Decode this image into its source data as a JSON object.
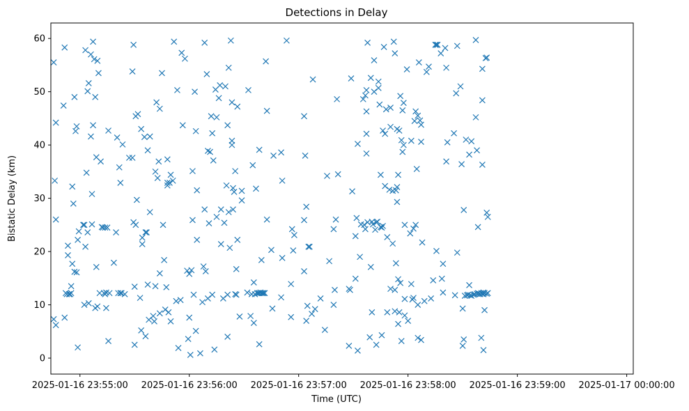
{
  "chart_data": {
    "type": "scatter",
    "title": "Detections in Delay",
    "xlabel": "Time (UTC)",
    "ylabel": "Bistatic Delay (km)",
    "marker": "x",
    "color": "#1f77b4",
    "grid": false,
    "x_unit": "minutes since 2025-01-16 23:55:00",
    "xlim": [
      -0.266,
      5.06
    ],
    "ylim": [
      -3.0,
      62.9
    ],
    "xticks": [
      {
        "value": 0,
        "label": "2025-01-16 23:55:00"
      },
      {
        "value": 1,
        "label": "2025-01-16 23:56:00"
      },
      {
        "value": 2,
        "label": "2025-01-16 23:57:00"
      },
      {
        "value": 3,
        "label": "2025-01-16 23:58:00"
      },
      {
        "value": 4,
        "label": "2025-01-16 23:59:00"
      },
      {
        "value": 5,
        "label": "2025-01-17 00:00:00"
      }
    ],
    "yticks": [
      {
        "value": 0,
        "label": "0"
      },
      {
        "value": 10,
        "label": "10"
      },
      {
        "value": 20,
        "label": "20"
      },
      {
        "value": 30,
        "label": "30"
      },
      {
        "value": 40,
        "label": "40"
      },
      {
        "value": 50,
        "label": "50"
      },
      {
        "value": 60,
        "label": "60"
      }
    ],
    "points": [
      [
        -0.24,
        55.5
      ],
      [
        -0.24,
        7.3
      ],
      [
        -0.23,
        33.3
      ],
      [
        -0.22,
        44.2
      ],
      [
        -0.22,
        26.0
      ],
      [
        -0.22,
        6.2
      ],
      [
        -0.14,
        7.6
      ],
      [
        -0.15,
        47.4
      ],
      [
        -0.14,
        58.3
      ],
      [
        -0.13,
        12.2
      ],
      [
        -0.12,
        12.0
      ],
      [
        -0.11,
        19.3
      ],
      [
        -0.11,
        21.1
      ],
      [
        -0.1,
        12.0
      ],
      [
        -0.09,
        12.0
      ],
      [
        -0.08,
        12.2
      ],
      [
        -0.08,
        13.5
      ],
      [
        -0.07,
        17.7
      ],
      [
        -0.07,
        32.2
      ],
      [
        -0.06,
        29.0
      ],
      [
        -0.05,
        16.2
      ],
      [
        -0.05,
        49.0
      ],
      [
        -0.04,
        42.6
      ],
      [
        -0.03,
        16.1
      ],
      [
        -0.03,
        43.5
      ],
      [
        -0.02,
        2.0
      ],
      [
        -0.02,
        22.2
      ],
      [
        -0.01,
        23.8
      ],
      [
        0.03,
        25.0
      ],
      [
        0.04,
        25.0
      ],
      [
        0.04,
        10.0
      ],
      [
        0.05,
        20.9
      ],
      [
        0.05,
        57.8
      ],
      [
        0.06,
        34.8
      ],
      [
        0.07,
        50.1
      ],
      [
        0.07,
        23.6
      ],
      [
        0.08,
        51.6
      ],
      [
        0.08,
        10.3
      ],
      [
        0.1,
        41.6
      ],
      [
        0.1,
        57.0
      ],
      [
        0.11,
        30.8
      ],
      [
        0.11,
        25.1
      ],
      [
        0.12,
        59.4
      ],
      [
        0.12,
        43.7
      ],
      [
        0.13,
        56.1
      ],
      [
        0.14,
        49.0
      ],
      [
        0.14,
        9.4
      ],
      [
        0.15,
        17.1
      ],
      [
        0.15,
        37.7
      ],
      [
        0.16,
        55.8
      ],
      [
        0.16,
        9.7
      ],
      [
        0.17,
        53.5
      ],
      [
        0.18,
        12.2
      ],
      [
        0.19,
        36.9
      ],
      [
        0.2,
        24.6
      ],
      [
        0.21,
        24.5
      ],
      [
        0.22,
        12.2
      ],
      [
        0.23,
        24.5
      ],
      [
        0.23,
        12.0
      ],
      [
        0.24,
        12.3
      ],
      [
        0.24,
        9.4
      ],
      [
        0.25,
        24.5
      ],
      [
        0.26,
        3.2
      ],
      [
        0.26,
        42.7
      ],
      [
        0.27,
        12.2
      ],
      [
        0.31,
        17.9
      ],
      [
        0.33,
        23.6
      ],
      [
        0.34,
        41.4
      ],
      [
        0.35,
        12.2
      ],
      [
        0.36,
        35.8
      ],
      [
        0.37,
        12.2
      ],
      [
        0.37,
        32.9
      ],
      [
        0.38,
        12.2
      ],
      [
        0.39,
        40.1
      ],
      [
        0.41,
        12.0
      ],
      [
        0.45,
        37.6
      ],
      [
        0.48,
        37.6
      ],
      [
        0.48,
        53.8
      ],
      [
        0.49,
        58.8
      ],
      [
        0.49,
        25.5
      ],
      [
        0.5,
        2.5
      ],
      [
        0.5,
        13.4
      ],
      [
        0.51,
        25.0
      ],
      [
        0.51,
        45.4
      ],
      [
        0.52,
        29.7
      ],
      [
        0.53,
        45.8
      ],
      [
        0.55,
        11.3
      ],
      [
        0.56,
        43.0
      ],
      [
        0.56,
        5.2
      ],
      [
        0.57,
        22.6
      ],
      [
        0.57,
        21.4
      ],
      [
        0.59,
        41.5
      ],
      [
        0.6,
        23.6
      ],
      [
        0.6,
        4.1
      ],
      [
        0.61,
        23.6
      ],
      [
        0.62,
        39.0
      ],
      [
        0.62,
        13.8
      ],
      [
        0.63,
        7.2
      ],
      [
        0.64,
        41.6
      ],
      [
        0.64,
        27.4
      ],
      [
        0.67,
        7.9
      ],
      [
        0.68,
        6.9
      ],
      [
        0.69,
        13.5
      ],
      [
        0.69,
        35.0
      ],
      [
        0.7,
        48.0
      ],
      [
        0.71,
        33.8
      ],
      [
        0.72,
        36.9
      ],
      [
        0.73,
        8.4
      ],
      [
        0.73,
        46.8
      ],
      [
        0.73,
        15.9
      ],
      [
        0.75,
        53.5
      ],
      [
        0.76,
        25.0
      ],
      [
        0.77,
        18.4
      ],
      [
        0.78,
        9.1
      ],
      [
        0.79,
        13.3
      ],
      [
        0.8,
        37.3
      ],
      [
        0.8,
        32.9
      ],
      [
        0.8,
        32.4
      ],
      [
        0.81,
        8.6
      ],
      [
        0.82,
        32.9
      ],
      [
        0.83,
        34.4
      ],
      [
        0.83,
        6.9
      ],
      [
        0.85,
        33.3
      ],
      [
        0.86,
        59.4
      ],
      [
        0.88,
        10.7
      ],
      [
        0.89,
        50.3
      ],
      [
        0.9,
        1.9
      ],
      [
        0.92,
        10.9
      ],
      [
        0.93,
        57.3
      ],
      [
        0.94,
        43.7
      ],
      [
        0.96,
        56.2
      ],
      [
        0.98,
        16.4
      ],
      [
        0.99,
        3.6
      ],
      [
        1.0,
        7.6
      ],
      [
        1.0,
        15.8
      ],
      [
        1.01,
        0.6
      ],
      [
        1.02,
        16.5
      ],
      [
        1.03,
        25.9
      ],
      [
        1.03,
        35.1
      ],
      [
        1.04,
        11.9
      ],
      [
        1.05,
        50.0
      ],
      [
        1.06,
        5.1
      ],
      [
        1.06,
        42.6
      ],
      [
        1.07,
        31.5
      ],
      [
        1.07,
        22.2
      ],
      [
        1.1,
        0.9
      ],
      [
        1.12,
        10.5
      ],
      [
        1.13,
        17.2
      ],
      [
        1.14,
        59.2
      ],
      [
        1.14,
        27.9
      ],
      [
        1.15,
        16.3
      ],
      [
        1.16,
        53.3
      ],
      [
        1.17,
        11.2
      ],
      [
        1.17,
        38.9
      ],
      [
        1.18,
        25.3
      ],
      [
        1.19,
        38.7
      ],
      [
        1.2,
        45.4
      ],
      [
        1.21,
        11.9
      ],
      [
        1.21,
        42.2
      ],
      [
        1.22,
        37.1
      ],
      [
        1.23,
        1.6
      ],
      [
        1.24,
        50.4
      ],
      [
        1.25,
        45.2
      ],
      [
        1.25,
        26.5
      ],
      [
        1.27,
        48.8
      ],
      [
        1.28,
        51.2
      ],
      [
        1.29,
        21.4
      ],
      [
        1.29,
        27.9
      ],
      [
        1.31,
        11.2
      ],
      [
        1.32,
        25.4
      ],
      [
        1.33,
        51.0
      ],
      [
        1.34,
        32.4
      ],
      [
        1.35,
        4.0
      ],
      [
        1.35,
        43.7
      ],
      [
        1.35,
        11.9
      ],
      [
        1.36,
        54.5
      ],
      [
        1.36,
        27.4
      ],
      [
        1.37,
        20.7
      ],
      [
        1.38,
        59.6
      ],
      [
        1.39,
        40.8
      ],
      [
        1.39,
        40.0
      ],
      [
        1.39,
        48.0
      ],
      [
        1.4,
        27.9
      ],
      [
        1.4,
        31.9
      ],
      [
        1.41,
        31.2
      ],
      [
        1.42,
        12.0
      ],
      [
        1.42,
        35.1
      ],
      [
        1.43,
        11.9
      ],
      [
        1.43,
        16.7
      ],
      [
        1.44,
        22.2
      ],
      [
        1.44,
        47.2
      ],
      [
        1.46,
        7.8
      ],
      [
        1.48,
        31.4
      ],
      [
        1.48,
        29.6
      ],
      [
        1.53,
        12.3
      ],
      [
        1.54,
        50.3
      ],
      [
        1.56,
        7.9
      ],
      [
        1.57,
        12.0
      ],
      [
        1.58,
        36.2
      ],
      [
        1.59,
        6.6
      ],
      [
        1.59,
        14.2
      ],
      [
        1.6,
        12.0
      ],
      [
        1.61,
        31.8
      ],
      [
        1.62,
        12.2
      ],
      [
        1.63,
        12.2
      ],
      [
        1.64,
        2.6
      ],
      [
        1.64,
        39.1
      ],
      [
        1.64,
        12.2
      ],
      [
        1.65,
        12.3
      ],
      [
        1.66,
        18.4
      ],
      [
        1.66,
        12.2
      ],
      [
        1.67,
        12.2
      ],
      [
        1.68,
        12.2
      ],
      [
        1.69,
        12.2
      ],
      [
        1.7,
        55.7
      ],
      [
        1.71,
        46.4
      ],
      [
        1.71,
        26.0
      ],
      [
        1.75,
        20.3
      ],
      [
        1.76,
        9.3
      ],
      [
        1.77,
        38.0
      ],
      [
        1.84,
        11.4
      ],
      [
        1.84,
        38.6
      ],
      [
        1.85,
        18.8
      ],
      [
        1.85,
        33.3
      ],
      [
        1.89,
        59.6
      ],
      [
        1.93,
        13.9
      ],
      [
        1.93,
        7.7
      ],
      [
        1.94,
        24.2
      ],
      [
        1.95,
        20.2
      ],
      [
        1.96,
        23.1
      ],
      [
        2.05,
        16.3
      ],
      [
        2.05,
        25.9
      ],
      [
        2.05,
        45.4
      ],
      [
        2.06,
        38.0
      ],
      [
        2.07,
        28.4
      ],
      [
        2.07,
        7.0
      ],
      [
        2.08,
        9.8
      ],
      [
        2.09,
        20.9
      ],
      [
        2.1,
        20.9
      ],
      [
        2.12,
        8.3
      ],
      [
        2.13,
        52.3
      ],
      [
        2.15,
        9.2
      ],
      [
        2.2,
        11.2
      ],
      [
        2.24,
        5.3
      ],
      [
        2.26,
        34.2
      ],
      [
        2.28,
        18.2
      ],
      [
        2.32,
        24.2
      ],
      [
        2.32,
        10.0
      ],
      [
        2.33,
        12.8
      ],
      [
        2.34,
        26.0
      ],
      [
        2.35,
        48.6
      ],
      [
        2.36,
        34.5
      ],
      [
        2.46,
        13.0
      ],
      [
        2.46,
        2.3
      ],
      [
        2.47,
        12.8
      ],
      [
        2.48,
        52.5
      ],
      [
        2.49,
        31.3
      ],
      [
        2.52,
        14.9
      ],
      [
        2.52,
        22.9
      ],
      [
        2.53,
        26.3
      ],
      [
        2.54,
        40.2
      ],
      [
        2.54,
        1.4
      ],
      [
        2.56,
        19.0
      ],
      [
        2.57,
        25.1
      ],
      [
        2.59,
        48.6
      ],
      [
        2.6,
        25.0
      ],
      [
        2.61,
        49.3
      ],
      [
        2.61,
        24.2
      ],
      [
        2.62,
        50.3
      ],
      [
        2.62,
        46.3
      ],
      [
        2.62,
        42.1
      ],
      [
        2.62,
        38.4
      ],
      [
        2.63,
        59.2
      ],
      [
        2.63,
        25.5
      ],
      [
        2.65,
        3.9
      ],
      [
        2.66,
        52.6
      ],
      [
        2.66,
        17.1
      ],
      [
        2.67,
        8.6
      ],
      [
        2.67,
        25.6
      ],
      [
        2.68,
        25.1
      ],
      [
        2.69,
        50.0
      ],
      [
        2.69,
        55.9
      ],
      [
        2.7,
        24.1
      ],
      [
        2.71,
        2.5
      ],
      [
        2.71,
        25.5
      ],
      [
        2.72,
        25.6
      ],
      [
        2.73,
        51.9
      ],
      [
        2.73,
        50.7
      ],
      [
        2.74,
        47.6
      ],
      [
        2.75,
        24.6
      ],
      [
        2.75,
        34.4
      ],
      [
        2.76,
        24.5
      ],
      [
        2.76,
        4.3
      ],
      [
        2.77,
        42.7
      ],
      [
        2.77,
        24.8
      ],
      [
        2.78,
        58.4
      ],
      [
        2.79,
        42.1
      ],
      [
        2.79,
        32.3
      ],
      [
        2.8,
        46.7
      ],
      [
        2.81,
        8.6
      ],
      [
        2.81,
        22.7
      ],
      [
        2.83,
        31.6
      ],
      [
        2.84,
        47.0
      ],
      [
        2.84,
        43.4
      ],
      [
        2.84,
        13.0
      ],
      [
        2.86,
        31.4
      ],
      [
        2.86,
        21.5
      ],
      [
        2.87,
        59.4
      ],
      [
        2.88,
        57.2
      ],
      [
        2.88,
        12.8
      ],
      [
        2.88,
        8.8
      ],
      [
        2.89,
        31.5
      ],
      [
        2.89,
        17.8
      ],
      [
        2.9,
        43.0
      ],
      [
        2.9,
        32.1
      ],
      [
        2.9,
        29.3
      ],
      [
        2.91,
        34.4
      ],
      [
        2.91,
        14.8
      ],
      [
        2.91,
        6.4
      ],
      [
        2.92,
        42.7
      ],
      [
        2.92,
        8.6
      ],
      [
        2.93,
        49.2
      ],
      [
        2.93,
        14.1
      ],
      [
        2.94,
        40.9
      ],
      [
        2.94,
        3.2
      ],
      [
        2.95,
        46.5
      ],
      [
        2.95,
        38.7
      ],
      [
        2.96,
        47.9
      ],
      [
        2.96,
        40.0
      ],
      [
        2.97,
        8.0
      ],
      [
        2.97,
        11.1
      ],
      [
        2.97,
        25.0
      ],
      [
        2.99,
        54.2
      ],
      [
        3.0,
        7.0
      ],
      [
        3.02,
        23.4
      ],
      [
        3.03,
        40.8
      ],
      [
        3.03,
        13.9
      ],
      [
        3.04,
        11.0
      ],
      [
        3.05,
        24.3
      ],
      [
        3.05,
        11.3
      ],
      [
        3.06,
        44.5
      ],
      [
        3.07,
        46.3
      ],
      [
        3.07,
        25.0
      ],
      [
        3.08,
        35.5
      ],
      [
        3.09,
        10.0
      ],
      [
        3.09,
        45.5
      ],
      [
        3.09,
        3.8
      ],
      [
        3.1,
        55.5
      ],
      [
        3.11,
        44.6
      ],
      [
        3.12,
        40.6
      ],
      [
        3.12,
        3.4
      ],
      [
        3.12,
        43.8
      ],
      [
        3.13,
        21.7
      ],
      [
        3.15,
        10.7
      ],
      [
        3.17,
        53.7
      ],
      [
        3.19,
        54.7
      ],
      [
        3.21,
        11.2
      ],
      [
        3.23,
        14.6
      ],
      [
        3.25,
        58.8
      ],
      [
        3.26,
        58.8
      ],
      [
        3.26,
        20.1
      ],
      [
        3.27,
        58.8
      ],
      [
        3.3,
        57.2
      ],
      [
        3.31,
        14.9
      ],
      [
        3.32,
        17.7
      ],
      [
        3.32,
        12.3
      ],
      [
        3.34,
        58.2
      ],
      [
        3.35,
        36.9
      ],
      [
        3.35,
        54.5
      ],
      [
        3.36,
        40.5
      ],
      [
        3.42,
        42.2
      ],
      [
        3.43,
        11.8
      ],
      [
        3.44,
        49.7
      ],
      [
        3.45,
        58.6
      ],
      [
        3.45,
        19.8
      ],
      [
        3.48,
        51.0
      ],
      [
        3.49,
        36.4
      ],
      [
        3.5,
        9.3
      ],
      [
        3.5,
        2.3
      ],
      [
        3.51,
        27.8
      ],
      [
        3.51,
        3.5
      ],
      [
        3.52,
        11.7
      ],
      [
        3.53,
        41.0
      ],
      [
        3.54,
        11.8
      ],
      [
        3.55,
        11.9
      ],
      [
        3.56,
        13.7
      ],
      [
        3.56,
        38.2
      ],
      [
        3.57,
        11.8
      ],
      [
        3.58,
        40.7
      ],
      [
        3.58,
        11.7
      ],
      [
        3.6,
        11.9
      ],
      [
        3.61,
        12.0
      ],
      [
        3.62,
        59.7
      ],
      [
        3.62,
        45.2
      ],
      [
        3.63,
        12.1
      ],
      [
        3.63,
        39.0
      ],
      [
        3.64,
        12.2
      ],
      [
        3.64,
        24.6
      ],
      [
        3.65,
        12.1
      ],
      [
        3.66,
        12.0
      ],
      [
        3.67,
        12.2
      ],
      [
        3.67,
        3.8
      ],
      [
        3.68,
        12.1
      ],
      [
        3.68,
        54.3
      ],
      [
        3.68,
        48.4
      ],
      [
        3.68,
        36.3
      ],
      [
        3.69,
        12.3
      ],
      [
        3.69,
        1.5
      ],
      [
        3.69,
        12.0
      ],
      [
        3.7,
        9.0
      ],
      [
        3.7,
        12.2
      ],
      [
        3.71,
        56.3
      ],
      [
        3.72,
        56.4
      ],
      [
        3.72,
        27.3
      ],
      [
        3.72,
        12.1
      ],
      [
        3.73,
        26.5
      ],
      [
        3.73,
        12.2
      ]
    ]
  }
}
